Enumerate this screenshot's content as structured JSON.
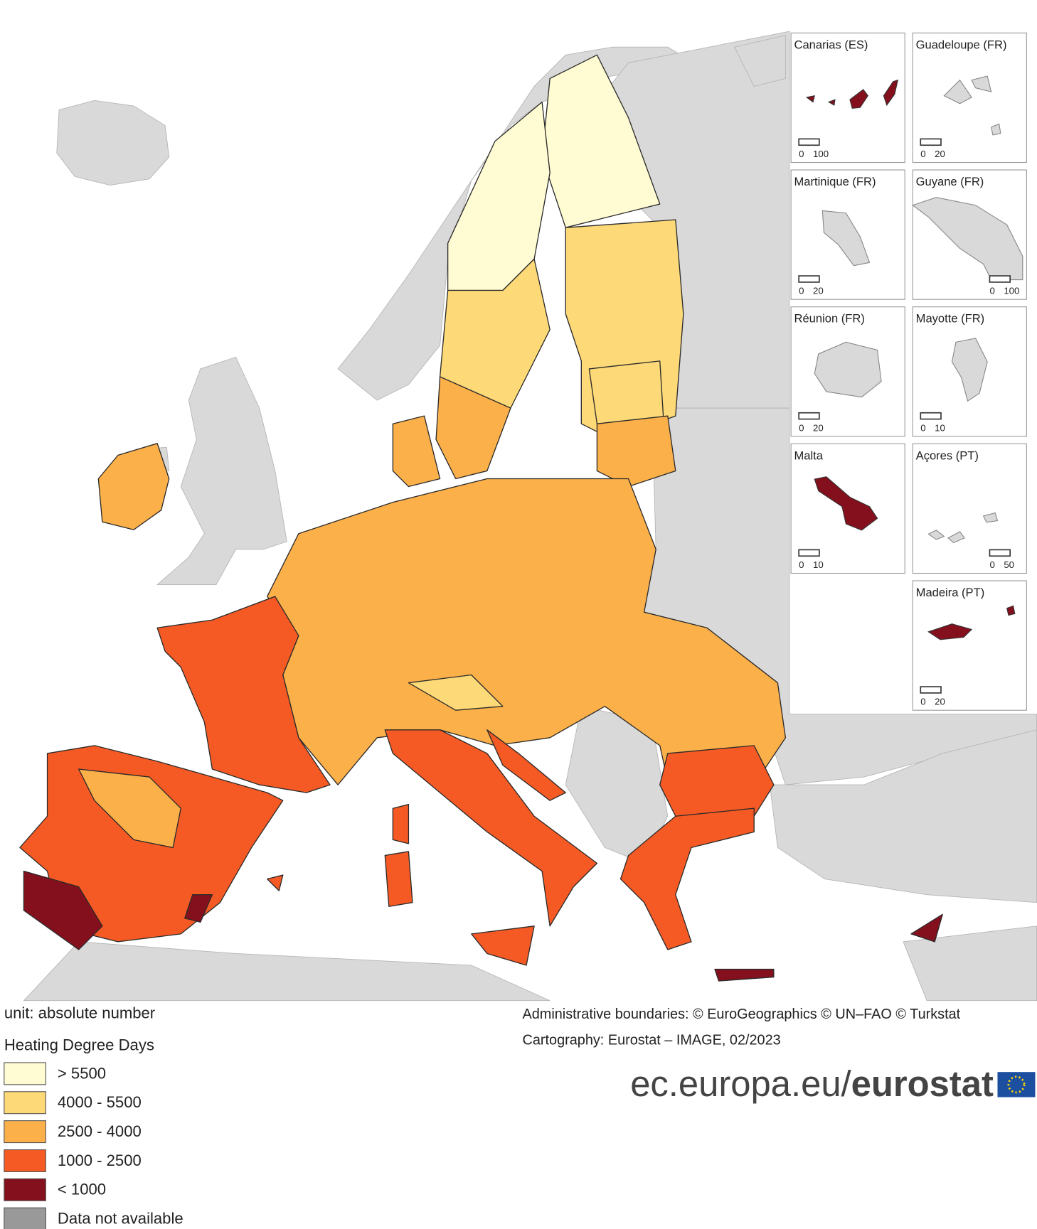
{
  "legend": {
    "unit": "unit: absolute number",
    "title": "Heating Degree Days",
    "items": [
      {
        "label": "> 5500",
        "color": "#fffbd2"
      },
      {
        "label": "4000 - 5500",
        "color": "#fdd978"
      },
      {
        "label": "2500 - 4000",
        "color": "#fbb04a"
      },
      {
        "label": "1000 - 2500",
        "color": "#f55a24"
      },
      {
        "label": "< 1000",
        "color": "#84101d"
      },
      {
        "label": "Data not available",
        "color": "#999999"
      }
    ]
  },
  "insets": [
    {
      "title": "Canarias (ES)",
      "scale": [
        0,
        100
      ]
    },
    {
      "title": "Guadeloupe (FR)",
      "scale": [
        0,
        20
      ]
    },
    {
      "title": "Martinique (FR)",
      "scale": [
        0,
        20
      ]
    },
    {
      "title": "Guyane (FR)",
      "scale": [
        0,
        100
      ]
    },
    {
      "title": "Réunion (FR)",
      "scale": [
        0,
        20
      ]
    },
    {
      "title": "Mayotte (FR)",
      "scale": [
        0,
        10
      ]
    },
    {
      "title": "Malta",
      "scale": [
        0,
        10
      ]
    },
    {
      "title": "Açores (PT)",
      "scale": [
        0,
        50
      ]
    },
    {
      "title": "Madeira (PT)",
      "scale": [
        0,
        20
      ]
    }
  ],
  "credits": [
    "Administrative boundaries: © EuroGeographics © UN–FAO © Turkstat",
    "Cartography: Eurostat – IMAGE, 02/2023"
  ],
  "logo": {
    "domain": "ec.europa.eu/",
    "brand": "eurostat"
  }
}
